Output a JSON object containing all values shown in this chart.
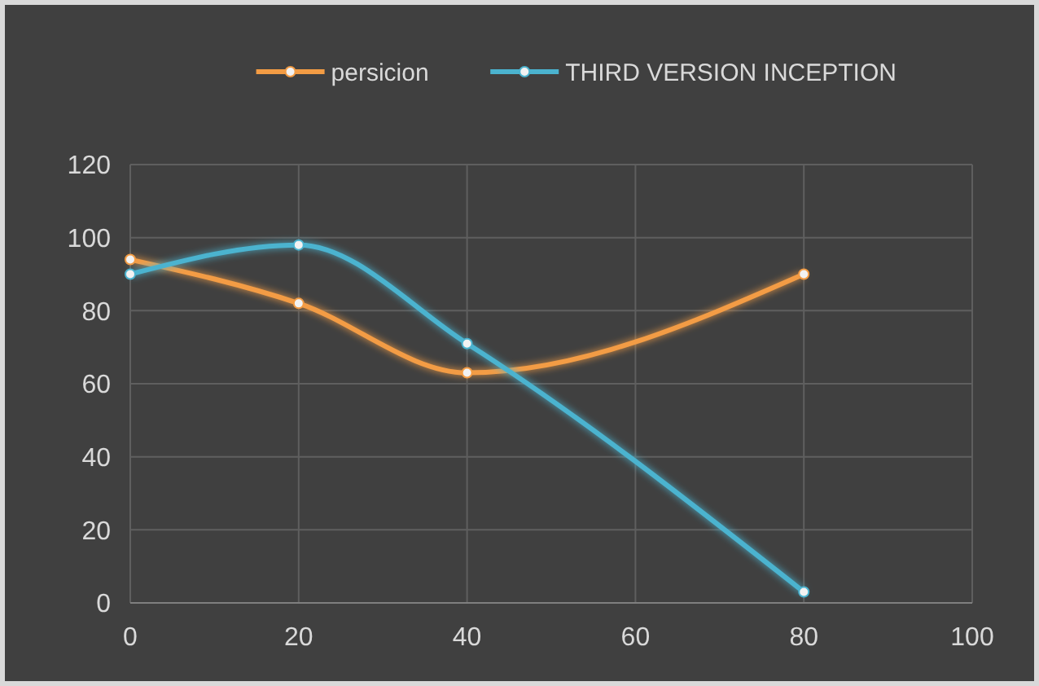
{
  "chart_data": {
    "type": "line",
    "x": [
      0,
      20,
      40,
      80
    ],
    "series": [
      {
        "name": "persicion",
        "color": "#f39c44",
        "values": [
          94,
          82,
          63,
          90
        ]
      },
      {
        "name": "THIRD VERSION INCEPTION",
        "color": "#4bb3cf",
        "values": [
          90,
          98,
          71,
          3
        ]
      }
    ],
    "xlim": [
      0,
      100
    ],
    "xticks": [
      0,
      20,
      40,
      60,
      80,
      100
    ],
    "ylim": [
      0,
      120
    ],
    "yticks": [
      0,
      20,
      40,
      60,
      80,
      100,
      120
    ],
    "grid": true,
    "legend": "top",
    "marker": "circle",
    "line_style": "solid"
  }
}
